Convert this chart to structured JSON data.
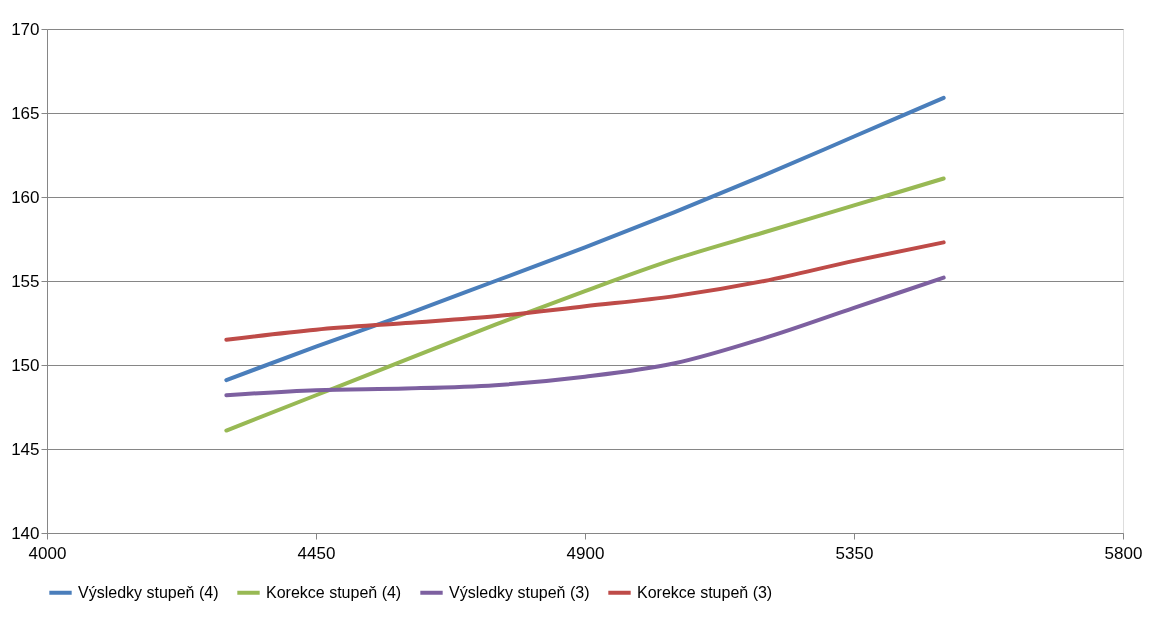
{
  "chart_data": {
    "type": "line",
    "x": [
      4300,
      4450,
      4600,
      4750,
      4900,
      5050,
      5200,
      5350,
      5500
    ],
    "series": [
      {
        "name": "Výsledky stupeň (4)",
        "color": "#4a7ebb",
        "values": [
          149.1,
          151.1,
          153.0,
          155.0,
          157.0,
          159.1,
          161.3,
          163.6,
          165.9
        ]
      },
      {
        "name": "Korekce stupeň (4)",
        "color": "#98b954",
        "values": [
          146.1,
          148.2,
          150.3,
          152.4,
          154.4,
          156.3,
          157.9,
          159.5,
          161.1
        ]
      },
      {
        "name": "Výsledky stupeň (3)",
        "color": "#7d60a0",
        "values": [
          148.2,
          148.5,
          148.6,
          148.8,
          149.3,
          150.1,
          151.6,
          153.4,
          155.2
        ]
      },
      {
        "name": "Korekce stupeň (3)",
        "color": "#be4b48",
        "values": [
          151.5,
          152.1,
          152.5,
          152.9,
          153.5,
          154.1,
          155.0,
          156.2,
          157.3
        ]
      }
    ],
    "xlim": [
      4000,
      5800
    ],
    "xticks": [
      4000,
      4450,
      4900,
      5350,
      5800
    ],
    "ylim": [
      140,
      170
    ],
    "yticks": [
      140,
      145,
      150,
      155,
      160,
      165,
      170
    ],
    "grid": "y",
    "legend": "bottom",
    "marker": "none",
    "line_style": "solid"
  }
}
